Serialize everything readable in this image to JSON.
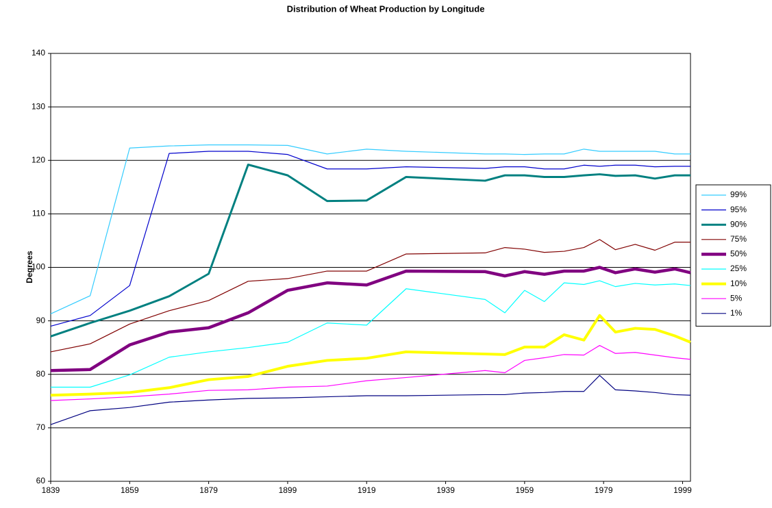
{
  "chart_data": {
    "type": "line",
    "title": "Distribution of Wheat Production by Longitude",
    "y_label": "Degrees",
    "x": [
      1839,
      1849,
      1859,
      1869,
      1879,
      1889,
      1899,
      1909,
      1919,
      1929,
      1949,
      1954,
      1959,
      1964,
      1969,
      1974,
      1978,
      1982,
      1987,
      1992,
      1997,
      2001
    ],
    "xlim": [
      1839,
      2001
    ],
    "xticks": [
      1839,
      1859,
      1879,
      1899,
      1919,
      1939,
      1959,
      1979,
      1999
    ],
    "ylim": [
      60,
      140
    ],
    "yticks": [
      60,
      70,
      80,
      90,
      100,
      110,
      120,
      130,
      140
    ],
    "grid": true,
    "legend": "right",
    "series": [
      {
        "name": "99%",
        "color": "#33ccff",
        "line_width": 1.2,
        "values": [
          91.3,
          94.7,
          122.3,
          122.7,
          122.9,
          122.9,
          122.8,
          121.2,
          122.1,
          121.7,
          121.2,
          121.2,
          121.1,
          121.2,
          121.2,
          122.1,
          121.7,
          121.7,
          121.7,
          121.7,
          121.2,
          121.2
        ]
      },
      {
        "name": "95%",
        "color": "#0000cc",
        "line_width": 1.2,
        "values": [
          89.0,
          91.0,
          96.6,
          121.3,
          121.7,
          121.7,
          121.1,
          118.4,
          118.4,
          118.8,
          118.5,
          118.8,
          118.8,
          118.4,
          118.4,
          119.1,
          118.9,
          119.1,
          119.1,
          118.8,
          118.9,
          118.9
        ]
      },
      {
        "name": "90%",
        "color": "#008080",
        "line_width": 3,
        "values": [
          87.1,
          89.6,
          91.9,
          94.6,
          98.8,
          119.2,
          117.2,
          112.4,
          112.5,
          116.9,
          116.2,
          117.2,
          117.2,
          116.9,
          116.9,
          117.2,
          117.4,
          117.1,
          117.2,
          116.6,
          117.2,
          117.2
        ]
      },
      {
        "name": "75%",
        "color": "#800000",
        "line_width": 1.2,
        "values": [
          84.2,
          85.7,
          89.4,
          91.9,
          93.8,
          97.4,
          97.9,
          99.3,
          99.3,
          102.5,
          102.7,
          103.7,
          103.4,
          102.8,
          103.0,
          103.7,
          105.2,
          103.3,
          104.3,
          103.2,
          104.7,
          104.7
        ]
      },
      {
        "name": "50%",
        "color": "#800080",
        "line_width": 4.5,
        "values": [
          80.7,
          80.9,
          85.5,
          87.9,
          88.7,
          91.5,
          95.7,
          97.1,
          96.7,
          99.3,
          99.2,
          98.4,
          99.2,
          98.7,
          99.3,
          99.3,
          100.0,
          99.0,
          99.7,
          99.1,
          99.7,
          99.0
        ]
      },
      {
        "name": "25%",
        "color": "#00ffff",
        "line_width": 1.2,
        "values": [
          77.6,
          77.6,
          79.9,
          83.2,
          84.2,
          85.0,
          86.0,
          89.6,
          89.2,
          96.0,
          94.0,
          91.5,
          95.7,
          93.6,
          97.1,
          96.8,
          97.5,
          96.4,
          97.0,
          96.7,
          96.9,
          96.6
        ]
      },
      {
        "name": "10%",
        "color": "#ffff00",
        "line_width": 4,
        "values": [
          76.1,
          76.3,
          76.6,
          77.5,
          79.0,
          79.6,
          81.5,
          82.6,
          83.0,
          84.2,
          83.8,
          83.7,
          85.1,
          85.1,
          87.4,
          86.4,
          91.0,
          87.9,
          88.6,
          88.4,
          87.2,
          86.0
        ]
      },
      {
        "name": "5%",
        "color": "#ff00ff",
        "line_width": 1.2,
        "values": [
          75.1,
          75.4,
          75.8,
          76.3,
          77.0,
          77.1,
          77.6,
          77.8,
          78.8,
          79.4,
          80.7,
          80.3,
          82.6,
          83.1,
          83.7,
          83.6,
          85.4,
          83.9,
          84.1,
          83.6,
          83.1,
          82.8
        ]
      },
      {
        "name": "1%",
        "color": "#000080",
        "line_width": 1.2,
        "values": [
          70.6,
          73.2,
          73.8,
          74.8,
          75.2,
          75.5,
          75.6,
          75.8,
          76.0,
          76.0,
          76.2,
          76.2,
          76.5,
          76.6,
          76.8,
          76.8,
          79.8,
          77.1,
          76.9,
          76.6,
          76.2,
          76.1
        ]
      }
    ]
  }
}
